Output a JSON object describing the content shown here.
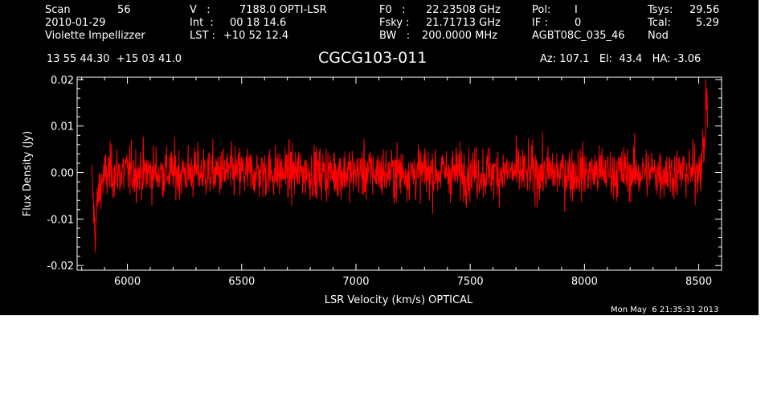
{
  "header": {
    "col1": {
      "scan_label": "Scan",
      "scan_value": "56",
      "date": "2010-01-29",
      "observer": "Violette Impellizzer"
    },
    "col2": {
      "v_label": "V   :",
      "v_value": "7188.0 OPTI-LSR",
      "int_label": "Int  :",
      "int_value": "00 18 14.6",
      "lst_label": "LST :",
      "lst_value": "+10 52 12.4"
    },
    "col3": {
      "f0_label": "F0   :",
      "f0_value": "22.23508 GHz",
      "fsky_label": "Fsky :",
      "fsky_value": "21.71713 GHz",
      "bw_label": "BW   :",
      "bw_value": "200.0000 MHz"
    },
    "col4": {
      "pol_label": "Pol:",
      "pol_value": "I",
      "if_label": "IF :",
      "if_value": "0",
      "project": "AGBT08C_035_46"
    },
    "col5": {
      "tsys_label": "Tsys:",
      "tsys_value": "29.56",
      "tcal_label": "Tcal:",
      "tcal_value": "5.29",
      "mode": "Nod"
    },
    "coords": "13 55 44.30  +15 03 41.0",
    "source": "CGCG103-011",
    "pointing": "Az: 107.1   El:  43.4   HA: -3.06"
  },
  "timestamp": "Mon May  6 21:35:31 2013",
  "chart_data": {
    "type": "line",
    "title": "CGCG103-011",
    "xlabel": "LSR Velocity (km/s) OPTICAL",
    "ylabel": "Flux Density (Jy)",
    "xlim": [
      5780,
      8600
    ],
    "ylim": [
      -0.021,
      0.0205
    ],
    "xticks": [
      6000,
      6500,
      7000,
      7500,
      8000,
      8500
    ],
    "xtick_labels": [
      "6000",
      "6500",
      "7000",
      "7500",
      "8000",
      "8500"
    ],
    "yticks": [
      -0.02,
      -0.01,
      0.0,
      0.01,
      0.02
    ],
    "ytick_labels": [
      "-0.02",
      "-0.01",
      "0.00",
      "0.01",
      "0.02"
    ],
    "grid": false,
    "series": [
      {
        "color": "#ff0000",
        "x_range": [
          5845,
          8540
        ],
        "points": 1800,
        "noise_std_jy": 0.0035,
        "envelope": [
          [
            5845,
            -0.002
          ],
          [
            5858,
            -0.013
          ],
          [
            5870,
            -0.006
          ],
          [
            5885,
            -0.002
          ],
          [
            5920,
            0.0
          ],
          [
            8400,
            0.0
          ],
          [
            8480,
            0.0
          ],
          [
            8510,
            0.002
          ],
          [
            8525,
            0.006
          ],
          [
            8535,
            0.017
          ],
          [
            8540,
            0.011
          ]
        ]
      }
    ]
  }
}
